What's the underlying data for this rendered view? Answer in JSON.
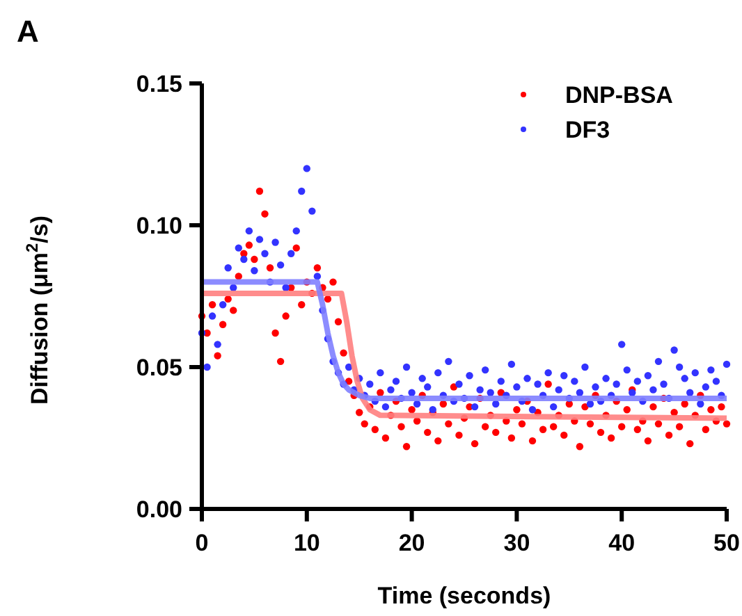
{
  "chart_data": {
    "type": "scatter",
    "xlabel": "Time (seconds)",
    "ylabel": "Diffusion (μm$^{2}$/s)",
    "annotations": [
      "A"
    ],
    "x": [
      0,
      0.5,
      1,
      1.5,
      2,
      2.5,
      3,
      3.5,
      4,
      4.5,
      5,
      5.5,
      6,
      6.5,
      7,
      7.5,
      8,
      8.5,
      9,
      9.5,
      10,
      10.5,
      11,
      11.5,
      12,
      12.5,
      13,
      13.5,
      14,
      14.5,
      15,
      15.5,
      16,
      16.5,
      17,
      17.5,
      18,
      18.5,
      19,
      19.5,
      20,
      20.5,
      21,
      21.5,
      22,
      22.5,
      23,
      23.5,
      24,
      24.5,
      25,
      25.5,
      26,
      26.5,
      27,
      27.5,
      28,
      28.5,
      29,
      29.5,
      30,
      30.5,
      31,
      31.5,
      32,
      32.5,
      33,
      33.5,
      34,
      34.5,
      35,
      35.5,
      36,
      36.5,
      37,
      37.5,
      38,
      38.5,
      39,
      39.5,
      40,
      40.5,
      41,
      41.5,
      42,
      42.5,
      43,
      43.5,
      44,
      44.5,
      45,
      45.5,
      46,
      46.5,
      47,
      47.5,
      48,
      48.5,
      49,
      49.5,
      50
    ],
    "series": [
      {
        "name": "DNP-BSA",
        "color": "#ff0000",
        "marker": "circle",
        "values": [
          0.068,
          0.062,
          0.072,
          0.054,
          0.065,
          0.074,
          0.07,
          0.082,
          0.09,
          0.093,
          0.088,
          0.112,
          0.104,
          0.085,
          0.062,
          0.052,
          0.068,
          0.078,
          0.092,
          0.072,
          0.08,
          0.076,
          0.085,
          0.078,
          0.074,
          0.08,
          0.066,
          0.055,
          0.045,
          0.04,
          0.034,
          0.03,
          0.036,
          0.028,
          0.041,
          0.025,
          0.033,
          0.038,
          0.029,
          0.022,
          0.035,
          0.031,
          0.04,
          0.027,
          0.034,
          0.024,
          0.037,
          0.03,
          0.043,
          0.026,
          0.032,
          0.036,
          0.023,
          0.039,
          0.029,
          0.033,
          0.027,
          0.041,
          0.031,
          0.025,
          0.035,
          0.03,
          0.038,
          0.024,
          0.034,
          0.028,
          0.044,
          0.029,
          0.033,
          0.026,
          0.037,
          0.031,
          0.022,
          0.036,
          0.03,
          0.04,
          0.027,
          0.033,
          0.025,
          0.038,
          0.029,
          0.035,
          0.042,
          0.028,
          0.031,
          0.024,
          0.036,
          0.03,
          0.039,
          0.026,
          0.034,
          0.029,
          0.037,
          0.023,
          0.033,
          0.04,
          0.028,
          0.035,
          0.031,
          0.036,
          0.03
        ]
      },
      {
        "name": "DF3",
        "color": "#3333ff",
        "marker": "circle",
        "values": [
          0.062,
          0.05,
          0.068,
          0.058,
          0.072,
          0.085,
          0.078,
          0.092,
          0.088,
          0.098,
          0.084,
          0.095,
          0.09,
          0.08,
          0.094,
          0.086,
          0.078,
          0.09,
          0.098,
          0.112,
          0.12,
          0.105,
          0.082,
          0.07,
          0.06,
          0.052,
          0.048,
          0.044,
          0.05,
          0.042,
          0.046,
          0.04,
          0.044,
          0.038,
          0.048,
          0.036,
          0.042,
          0.045,
          0.039,
          0.05,
          0.041,
          0.037,
          0.046,
          0.043,
          0.035,
          0.048,
          0.04,
          0.052,
          0.038,
          0.044,
          0.039,
          0.047,
          0.036,
          0.042,
          0.049,
          0.041,
          0.037,
          0.045,
          0.04,
          0.051,
          0.043,
          0.038,
          0.046,
          0.035,
          0.044,
          0.04,
          0.048,
          0.036,
          0.042,
          0.047,
          0.039,
          0.045,
          0.041,
          0.05,
          0.037,
          0.043,
          0.038,
          0.046,
          0.04,
          0.044,
          0.058,
          0.049,
          0.041,
          0.045,
          0.038,
          0.047,
          0.042,
          0.052,
          0.044,
          0.039,
          0.056,
          0.05,
          0.046,
          0.041,
          0.048,
          0.037,
          0.043,
          0.049,
          0.045,
          0.04,
          0.051
        ]
      },
      {
        "type": "line",
        "marker": "none",
        "color": "#ff8080",
        "x": [
          0,
          13.3,
          13.8,
          14.3,
          14.8,
          15.3,
          16,
          17,
          50
        ],
        "values": [
          0.076,
          0.076,
          0.066,
          0.054,
          0.045,
          0.039,
          0.035,
          0.033,
          0.032
        ]
      },
      {
        "type": "line",
        "marker": "none",
        "color": "#8080ff",
        "x": [
          0,
          11,
          11.5,
          12,
          12.5,
          13,
          13.5,
          14,
          15,
          16,
          50
        ],
        "values": [
          0.08,
          0.08,
          0.072,
          0.062,
          0.054,
          0.048,
          0.044,
          0.042,
          0.04,
          0.039,
          0.039
        ]
      }
    ],
    "xlim": [
      0,
      50
    ],
    "xticks": [
      0,
      10,
      20,
      30,
      40,
      50
    ],
    "ylim": [
      0,
      0.15
    ],
    "yticks": [
      {
        "value": 0,
        "label": "0.00"
      },
      {
        "value": 0.05,
        "label": "0.05"
      },
      {
        "value": 0.1,
        "label": "0.10"
      },
      {
        "value": 0.15,
        "label": "0.15"
      }
    ],
    "legend": "top right",
    "grid": false,
    "line_style": "solid"
  }
}
